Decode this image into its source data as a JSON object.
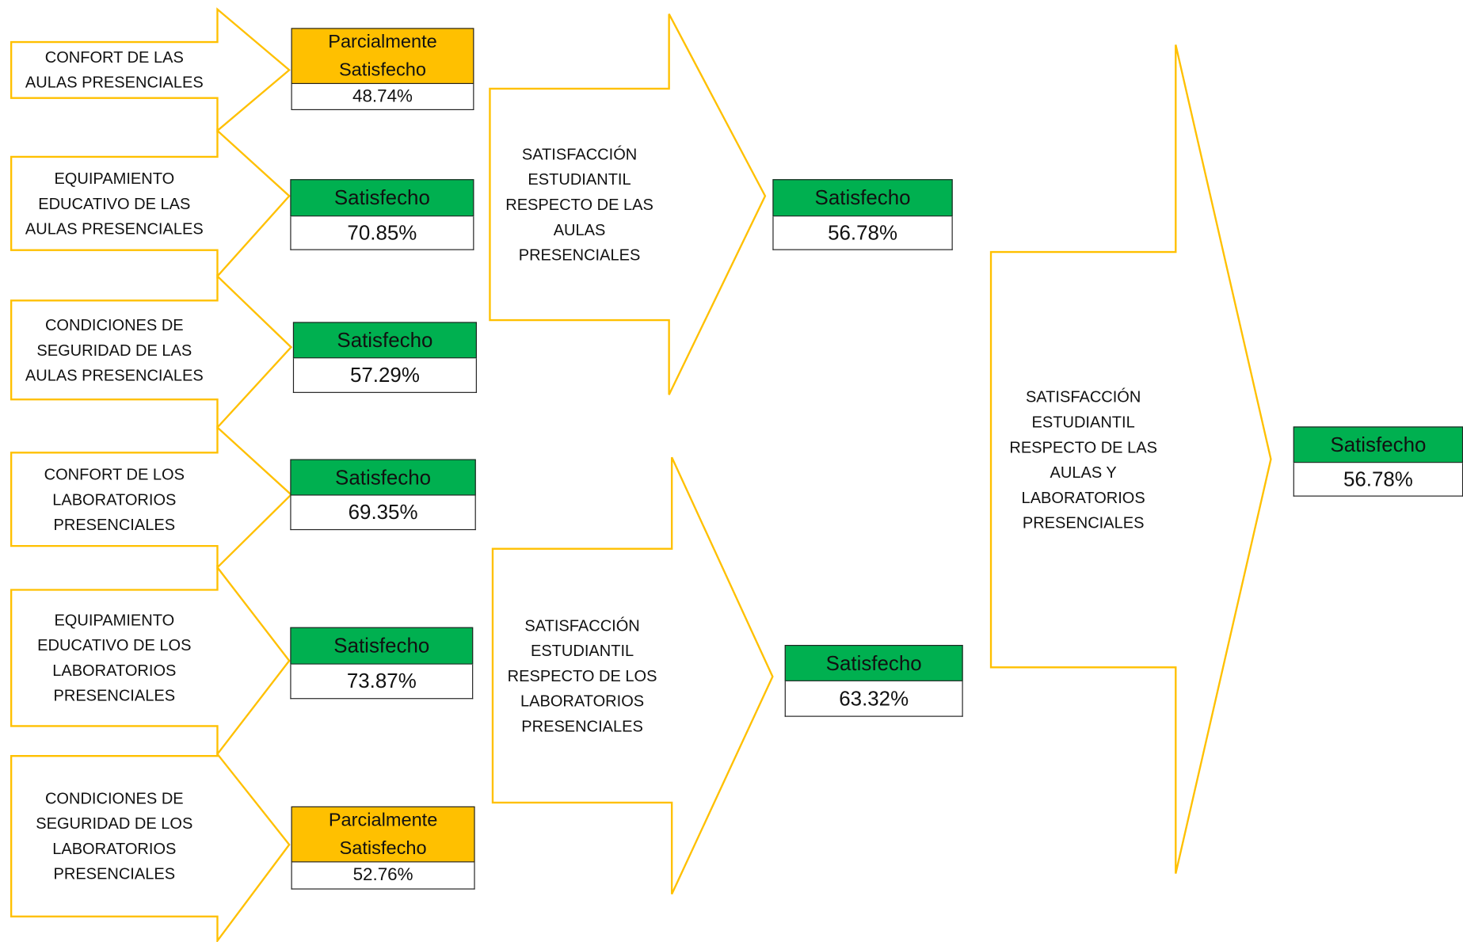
{
  "inputs": [
    {
      "label": "CONFORT DE LAS AULAS PRESENCIALES",
      "status": "Parcialmente Satisfecho",
      "value": "48.74%"
    },
    {
      "label": "EQUIPAMIENTO EDUCATIVO DE LAS AULAS PRESENCIALES",
      "status": "Satisfecho",
      "value": "70.85%"
    },
    {
      "label": "CONDICIONES DE SEGURIDAD DE LAS AULAS PRESENCIALES",
      "status": "Satisfecho",
      "value": "57.29%"
    },
    {
      "label": "CONFORT DE LOS LABORATORIOS PRESENCIALES",
      "status": "Satisfecho",
      "value": "69.35%"
    },
    {
      "label": "EQUIPAMIENTO EDUCATIVO DE LOS LABORATORIOS PRESENCIALES",
      "status": "Satisfecho",
      "value": "73.87%"
    },
    {
      "label": "CONDICIONES DE SEGURIDAD DE LOS LABORATORIOS PRESENCIALES",
      "status": "Parcialmente Satisfecho",
      "value": "52.76%"
    }
  ],
  "groups": [
    {
      "label": "SATISFACCIÓN ESTUDIANTIL RESPECTO DE LAS AULAS PRESENCIALES",
      "status": "Satisfecho",
      "value": "56.78%"
    },
    {
      "label": "SATISFACCIÓN ESTUDIANTIL RESPECTO DE LOS LABORATORIOS PRESENCIALES",
      "status": "Satisfecho",
      "value": "63.32%"
    }
  ],
  "overall": {
    "label": "SATISFACCIÓN ESTUDIANTIL RESPECTO DE LAS AULAS Y LABORATORIOS PRESENCIALES",
    "status": "Satisfecho",
    "value": "56.78%"
  }
}
